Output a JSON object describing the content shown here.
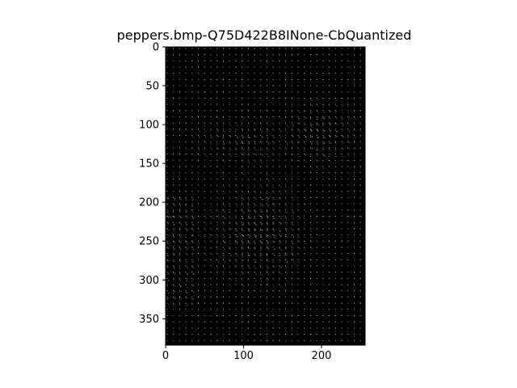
{
  "chart_data": {
    "type": "heatmap",
    "title": "peppers.bmp-Q75D422B8INone-CbQuantized",
    "xlabel": "",
    "ylabel": "",
    "image_width": 256,
    "image_height": 384,
    "block_size": 8,
    "xlim": [
      0,
      256
    ],
    "ylim": [
      384,
      0
    ],
    "x_ticks": [
      0,
      100,
      200
    ],
    "y_ticks": [
      0,
      50,
      100,
      150,
      200,
      250,
      300,
      350
    ],
    "grid": false,
    "legend": "none",
    "colormap": "gray",
    "background_color": "#000000",
    "mark_color": "#ffffff",
    "axis_color": "#000000"
  }
}
